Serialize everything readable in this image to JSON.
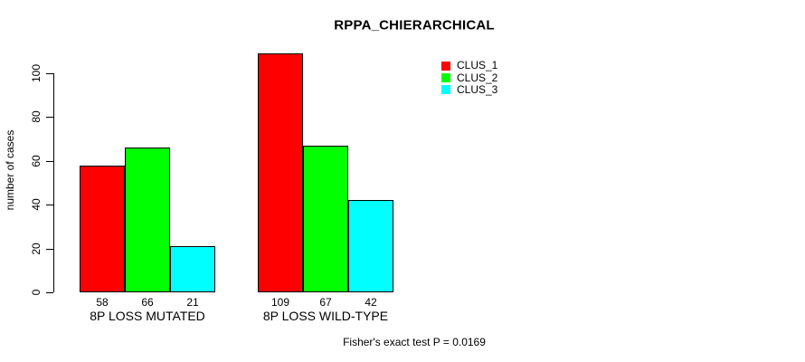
{
  "title": "RPPA_CHIERARCHICAL",
  "footer": {
    "note": "Fisher's exact test P = 0.0169"
  },
  "chart_data": {
    "type": "bar",
    "title": "RPPA_CHIERARCHICAL",
    "categories": [
      "8P LOSS MUTATED",
      "8P LOSS WILD-TYPE"
    ],
    "series": [
      {
        "name": "CLUS_1",
        "color": "#ff0000",
        "values": [
          58,
          109
        ]
      },
      {
        "name": "CLUS_2",
        "color": "#00ff00",
        "values": [
          66,
          67
        ]
      },
      {
        "name": "CLUS_3",
        "color": "#00ffff",
        "values": [
          21,
          42
        ]
      }
    ],
    "xlabel": "",
    "ylabel": "number of cases",
    "yticks": [
      0,
      20,
      40,
      60,
      80,
      100
    ],
    "ylim": [
      0,
      109
    ],
    "bar_value_labels": true,
    "legend_position": "top-right",
    "grid": false,
    "annotation": "Fisher's exact test P = 0.0169",
    "colors": {
      "bar_border": "#000000",
      "axis": "#000000",
      "background": "#ffffff"
    }
  }
}
